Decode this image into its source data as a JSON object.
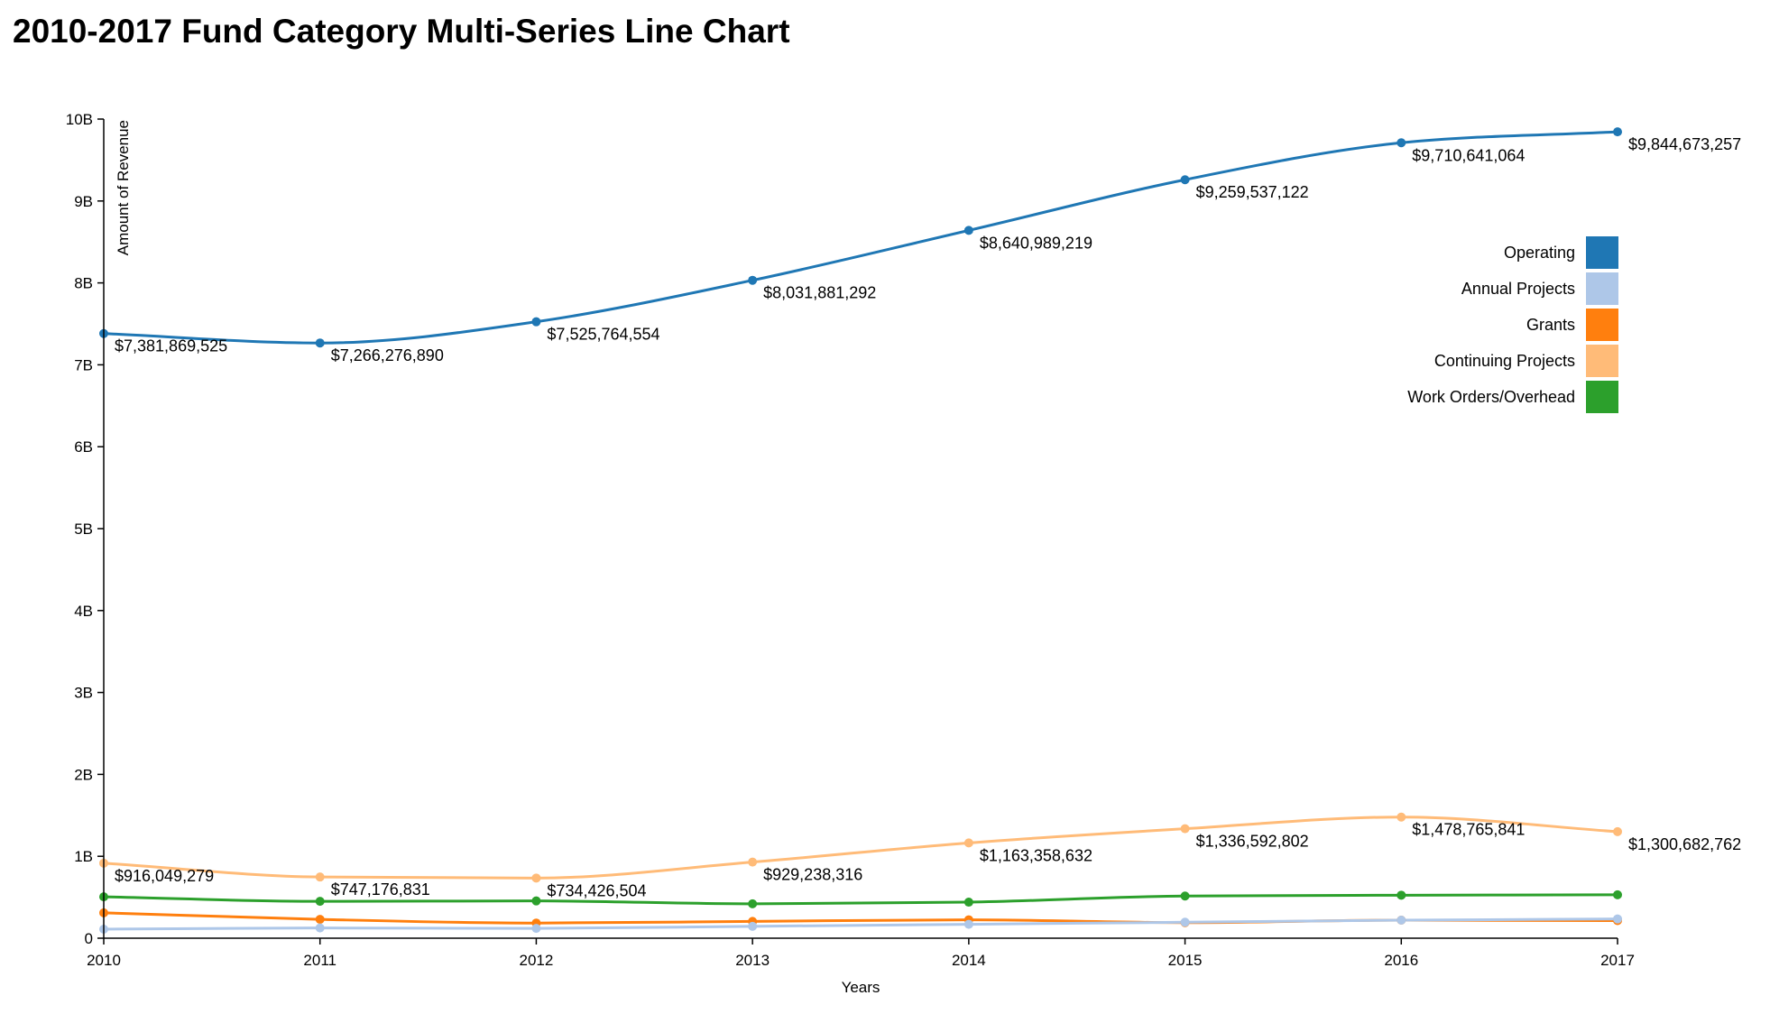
{
  "chart_data": {
    "type": "line",
    "title": "2010-2017 Fund Category Multi-Series Line Chart",
    "xlabel": "Years",
    "ylabel": "Amount of Revenue",
    "x": [
      "2010",
      "2011",
      "2012",
      "2013",
      "2014",
      "2015",
      "2016",
      "2017"
    ],
    "ylim": [
      0,
      10000000000
    ],
    "y_ticks": [
      0,
      1000000000,
      2000000000,
      3000000000,
      4000000000,
      5000000000,
      6000000000,
      7000000000,
      8000000000,
      9000000000,
      10000000000
    ],
    "y_tick_labels": [
      "0",
      "1B",
      "2B",
      "3B",
      "4B",
      "5B",
      "6B",
      "7B",
      "8B",
      "9B",
      "10B"
    ],
    "grid": false,
    "legend_position": "right",
    "series": [
      {
        "name": "Operating",
        "color": "#1f77b4",
        "values": [
          7381869525,
          7266276890,
          7525764554,
          8031881292,
          8640989219,
          9259537122,
          9710641064,
          9844673257
        ],
        "labels": [
          "$7,381,869,525",
          "$7,266,276,890",
          "$7,525,764,554",
          "$8,031,881,292",
          "$8,640,989,219",
          "$9,259,537,122",
          "$9,710,641,064",
          "$9,844,673,257"
        ]
      },
      {
        "name": "Annual Projects",
        "color": "#aec7e8",
        "values": [
          110000000,
          125000000,
          120000000,
          145000000,
          170000000,
          195000000,
          220000000,
          235000000
        ]
      },
      {
        "name": "Grants",
        "color": "#ff7f0e",
        "values": [
          310000000,
          230000000,
          185000000,
          205000000,
          225000000,
          190000000,
          220000000,
          215000000
        ]
      },
      {
        "name": "Continuing Projects",
        "color": "#ffbb78",
        "values": [
          916049279,
          747176831,
          734426504,
          929238316,
          1163358632,
          1336592802,
          1478765841,
          1300682762
        ],
        "labels": [
          "$916,049,279",
          "$747,176,831",
          "$734,426,504",
          "$929,238,316",
          "$1,163,358,632",
          "$1,336,592,802",
          "$1,478,765,841",
          "$1,300,682,762"
        ]
      },
      {
        "name": "Work Orders/Overhead",
        "color": "#2ca02c",
        "values": [
          505000000,
          450000000,
          455000000,
          420000000,
          440000000,
          515000000,
          525000000,
          530000000
        ]
      }
    ]
  }
}
